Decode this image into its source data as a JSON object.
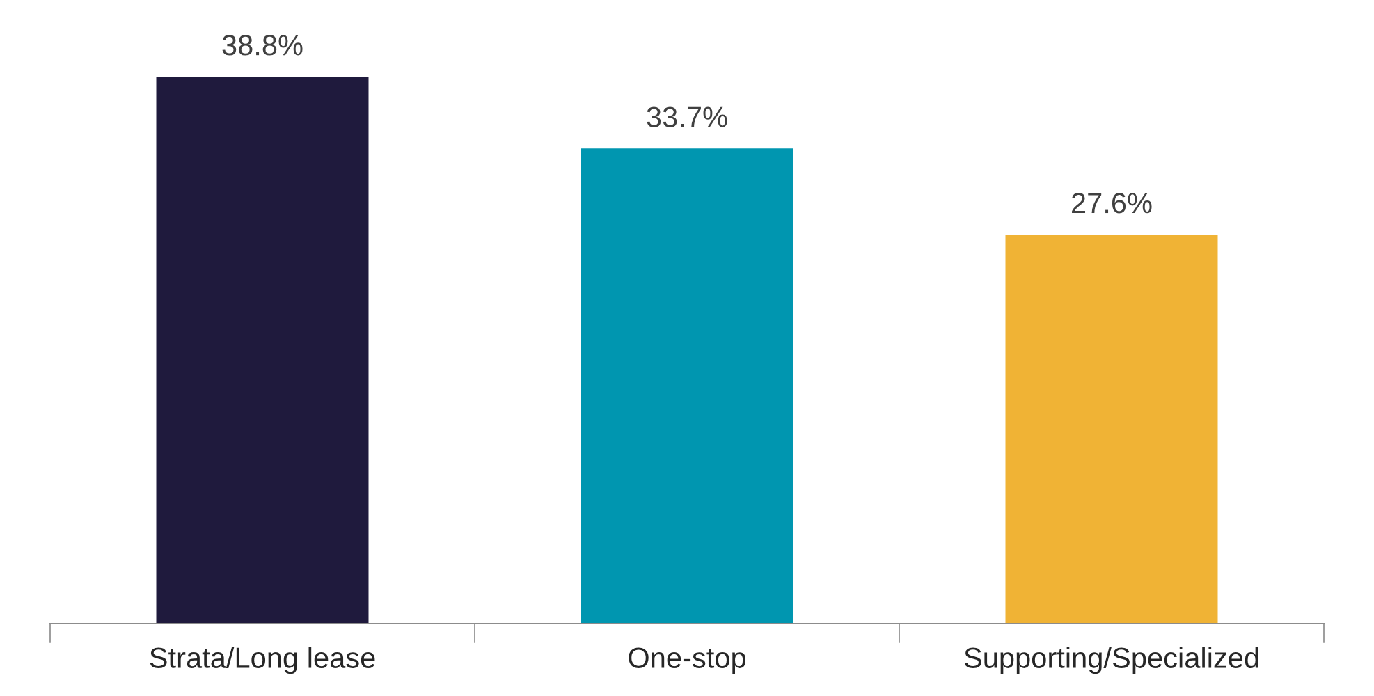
{
  "chart_data": {
    "type": "bar",
    "categories": [
      "Strata/Long lease",
      "One-stop",
      "Supporting/Specialized"
    ],
    "values": [
      38.8,
      33.7,
      27.6
    ],
    "colors": [
      "#1f1a3d",
      "#0096b0",
      "#f0b335"
    ],
    "value_labels": [
      "38.8%",
      "33.7%",
      "27.6%"
    ],
    "grid": false,
    "legend": false
  }
}
